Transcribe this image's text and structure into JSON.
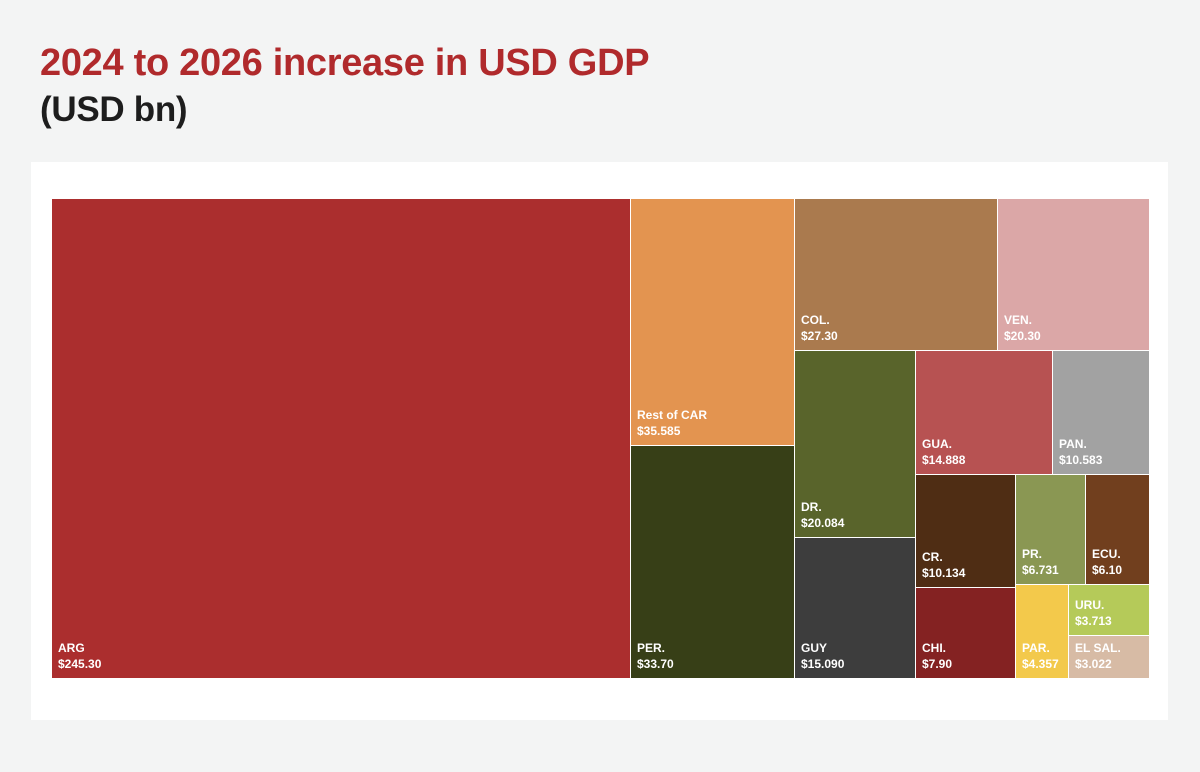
{
  "chart_data": {
    "type": "treemap",
    "title": "2024 to 2026 increase in USD GDP",
    "subtitle": "(USD bn)",
    "unit": "USD bn",
    "items": [
      {
        "name": "ARG",
        "value_label": "$245.30",
        "value": 245.3,
        "color": "#ab2e2e"
      },
      {
        "name": "Rest of CAR",
        "value_label": "$35.585",
        "value": 35.585,
        "color": "#e39450"
      },
      {
        "name": "PER.",
        "value_label": "$33.70",
        "value": 33.7,
        "color": "#373f17"
      },
      {
        "name": "COL.",
        "value_label": "$27.30",
        "value": 27.3,
        "color": "#aa7a4e"
      },
      {
        "name": "VEN.",
        "value_label": "$20.30",
        "value": 20.3,
        "color": "#dba7a7"
      },
      {
        "name": "DR.",
        "value_label": "$20.084",
        "value": 20.084,
        "color": "#59642b"
      },
      {
        "name": "GUY",
        "value_label": "$15.090",
        "value": 15.09,
        "color": "#3d3d3d"
      },
      {
        "name": "GUA.",
        "value_label": "$14.888",
        "value": 14.888,
        "color": "#b75252"
      },
      {
        "name": "PAN.",
        "value_label": "$10.583",
        "value": 10.583,
        "color": "#a2a2a2"
      },
      {
        "name": "CR.",
        "value_label": "$10.134",
        "value": 10.134,
        "color": "#4f2d14"
      },
      {
        "name": "PR.",
        "value_label": "$6.731",
        "value": 6.731,
        "color": "#8a9753"
      },
      {
        "name": "ECU.",
        "value_label": "$6.10",
        "value": 6.1,
        "color": "#713f1e"
      },
      {
        "name": "CHI.",
        "value_label": "$7.90",
        "value": 7.9,
        "color": "#842222"
      },
      {
        "name": "URU.",
        "value_label": "$3.713",
        "value": 3.713,
        "color": "#b5ca59"
      },
      {
        "name": "PAR.",
        "value_label": "$4.357",
        "value": 4.357,
        "color": "#f3c94b"
      },
      {
        "name": "EL SAL.",
        "value_label": "$3.022",
        "value": 3.022,
        "color": "#d7bba5"
      }
    ]
  }
}
